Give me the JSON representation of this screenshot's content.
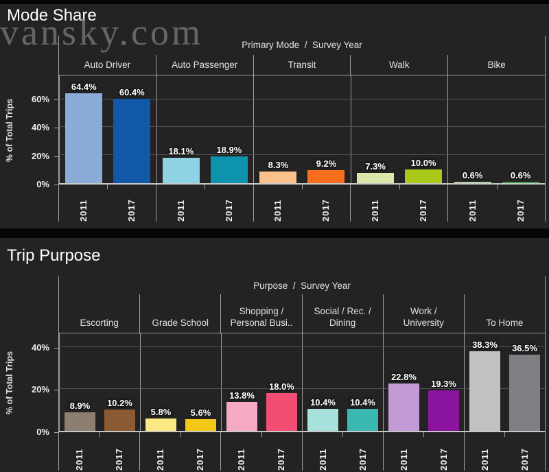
{
  "watermark": "vansky.com",
  "colors": {
    "background": "#232323",
    "separator": "#050505",
    "axis_line": "#c9c9c9",
    "gridline": "#545454",
    "pane_divider": "#a0a0a0",
    "label_text": "#ffffff"
  },
  "chart_data": [
    {
      "type": "bar",
      "title": "Mode Share",
      "col_header": "Primary Mode  /  Survey Year",
      "ylabel": "% of Total Trips",
      "ytick_labels": [
        "0%",
        "20%",
        "40%",
        "60%"
      ],
      "ylim": [
        0,
        77
      ],
      "grid": true,
      "legend": "none",
      "categories": [
        "Auto Driver",
        "Auto Passenger",
        "Transit",
        "Walk",
        "Bike"
      ],
      "series": [
        {
          "name": "2011",
          "values": [
            64.4,
            18.1,
            8.3,
            7.3,
            0.6
          ]
        },
        {
          "name": "2017",
          "values": [
            60.4,
            18.9,
            9.2,
            10.0,
            0.6
          ]
        }
      ],
      "bar_labels": [
        [
          "64.4%",
          "60.4%"
        ],
        [
          "18.1%",
          "18.9%"
        ],
        [
          "8.3%",
          "9.2%"
        ],
        [
          "7.3%",
          "10.0%"
        ],
        [
          "0.6%",
          "0.6%"
        ]
      ],
      "bar_colors": [
        [
          "#8cacd8",
          "#1158a8"
        ],
        [
          "#8fd1e5",
          "#0e93ac"
        ],
        [
          "#fbc08c",
          "#f96f1e"
        ],
        [
          "#d9e8a8",
          "#a9c91c"
        ],
        [
          "#b5d4ab",
          "#3da048"
        ]
      ]
    },
    {
      "type": "bar",
      "title": "Trip Purpose",
      "col_header": "Purpose  /  Survey Year",
      "ylabel": "% of Total Trips",
      "ytick_labels": [
        "0%",
        "20%",
        "40%"
      ],
      "ylim": [
        0,
        46.7
      ],
      "grid": true,
      "legend": "none",
      "categories": [
        "Escorting",
        "Grade School",
        "Shopping /\nPersonal Busi..",
        "Social / Rec. /\nDining",
        "Work /\nUniversity",
        "To Home"
      ],
      "series": [
        {
          "name": "2011",
          "values": [
            8.9,
            5.8,
            13.8,
            10.4,
            22.8,
            38.3
          ]
        },
        {
          "name": "2017",
          "values": [
            10.2,
            5.6,
            18.0,
            10.4,
            19.3,
            36.5
          ]
        }
      ],
      "bar_labels": [
        [
          "8.9%",
          "10.2%"
        ],
        [
          "5.8%",
          "5.6%"
        ],
        [
          "13.8%",
          "18.0%"
        ],
        [
          "10.4%",
          "10.4%"
        ],
        [
          "22.8%",
          "19.3%"
        ],
        [
          "38.3%",
          "36.5%"
        ]
      ],
      "bar_colors": [
        [
          "#8c7e70",
          "#8b5c33"
        ],
        [
          "#fbe983",
          "#f3c816"
        ],
        [
          "#f6a9c3",
          "#f24e74"
        ],
        [
          "#a7e1dc",
          "#3cb8b2"
        ],
        [
          "#c29bd6",
          "#8a149e"
        ],
        [
          "#c2c2c2",
          "#7f7f84"
        ]
      ]
    }
  ]
}
